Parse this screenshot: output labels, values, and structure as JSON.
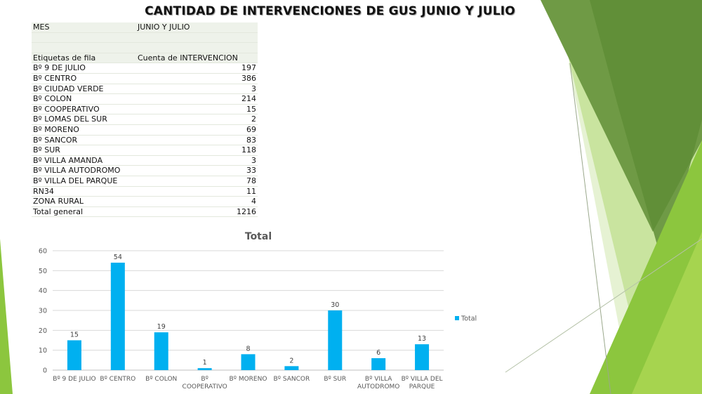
{
  "slide": {
    "title": "CANTIDAD DE INTERVENCIONES DE GUS JUNIO Y JULIO"
  },
  "pivot": {
    "filter_label": "MES",
    "filter_value": "JUNIO Y JULIO",
    "row_header": "Etiquetas de fila",
    "value_header": "Cuenta de INTERVENCION",
    "rows": [
      {
        "label": "Bº 9 DE JULIO",
        "value": "197"
      },
      {
        "label": "Bº CENTRO",
        "value": "386"
      },
      {
        "label": "Bº CIUDAD VERDE",
        "value": "3"
      },
      {
        "label": "Bº COLON",
        "value": "214"
      },
      {
        "label": "Bº COOPERATIVO",
        "value": "15"
      },
      {
        "label": "Bº LOMAS DEL SUR",
        "value": "2"
      },
      {
        "label": "Bº MORENO",
        "value": "69"
      },
      {
        "label": "Bº SANCOR",
        "value": "83"
      },
      {
        "label": "Bº SUR",
        "value": "118"
      },
      {
        "label": "Bº VILLA AMANDA",
        "value": "3"
      },
      {
        "label": "Bº VILLA AUTODROMO",
        "value": "33"
      },
      {
        "label": "Bº VILLA DEL PARQUE",
        "value": "78"
      },
      {
        "label": "RN34",
        "value": "11"
      },
      {
        "label": "ZONA RURAL",
        "value": "4"
      }
    ],
    "total_label": "Total general",
    "total_value": "1216"
  },
  "chart_data": {
    "type": "bar",
    "title": "Total",
    "categories": [
      [
        "Bº 9 DE JULIO"
      ],
      [
        "Bº CENTRO"
      ],
      [
        "Bº COLON"
      ],
      [
        "Bº",
        "COOPERATIVO"
      ],
      [
        "Bº MORENO"
      ],
      [
        "Bº SANCOR"
      ],
      [
        "Bº SUR"
      ],
      [
        "Bº VILLA",
        "AUTODROMO"
      ],
      [
        "Bº VILLA DEL",
        "PARQUE"
      ]
    ],
    "series": [
      {
        "name": "Total",
        "values": [
          15,
          54,
          19,
          1,
          8,
          2,
          30,
          6,
          13
        ]
      }
    ],
    "ylim": [
      0,
      60
    ],
    "yticks": [
      0,
      10,
      20,
      30,
      40,
      50,
      60
    ],
    "grid": true,
    "legend": "right",
    "colors": {
      "bar": "#00b0f0",
      "grid": "#d9d9d9",
      "axis_text": "#595959"
    }
  },
  "decor_colors": {
    "dark_green": "#5e8b3a",
    "mid_green": "#8cc63e",
    "light_green": "#c6e39a",
    "pale_green": "#e4f1d0"
  }
}
